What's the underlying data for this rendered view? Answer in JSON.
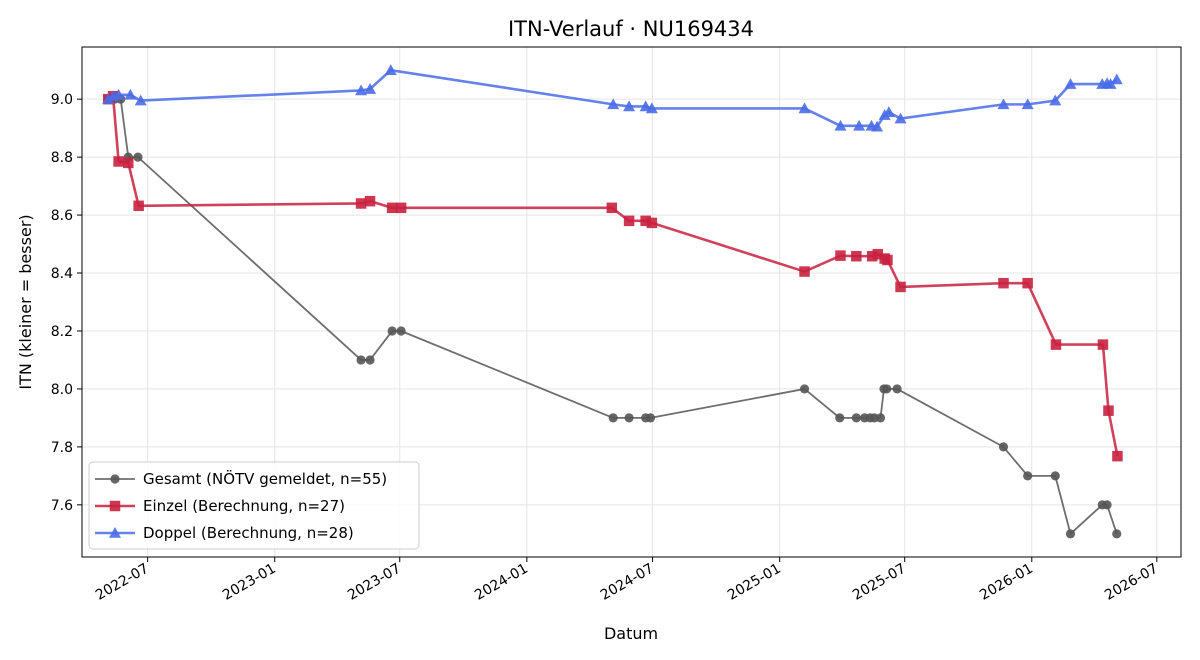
{
  "chart_data": {
    "type": "line",
    "title": "ITN-Verlauf · NU169434",
    "xlabel": "Datum",
    "ylabel": "ITN  (kleiner = besser)",
    "xlim": [
      "2022-03-28",
      "2026-08-05"
    ],
    "ylim": [
      7.42,
      9.18
    ],
    "x_ticks": [
      "2022-07",
      "2023-01",
      "2023-07",
      "2024-01",
      "2024-07",
      "2025-01",
      "2025-07",
      "2026-01",
      "2026-07"
    ],
    "y_ticks": [
      7.6,
      7.8,
      8.0,
      8.2,
      8.4,
      8.6,
      8.8,
      9.0
    ],
    "grid": true,
    "legend_position": "lower-left",
    "series": [
      {
        "name": "Gesamt (NÖTV gemeldet, n=55)",
        "color": "#555555",
        "marker": "circle",
        "points": [
          {
            "x": "2022-05-05",
            "y": 9.0
          },
          {
            "x": "2022-05-08",
            "y": 9.0
          },
          {
            "x": "2022-05-14",
            "y": 9.0
          },
          {
            "x": "2022-05-23",
            "y": 9.0
          },
          {
            "x": "2022-06-03",
            "y": 8.8
          },
          {
            "x": "2022-06-17",
            "y": 8.8
          },
          {
            "x": "2023-05-06",
            "y": 8.1
          },
          {
            "x": "2023-05-19",
            "y": 8.1
          },
          {
            "x": "2023-06-20",
            "y": 8.2
          },
          {
            "x": "2023-07-03",
            "y": 8.2
          },
          {
            "x": "2024-05-05",
            "y": 7.9
          },
          {
            "x": "2024-05-28",
            "y": 7.9
          },
          {
            "x": "2024-06-21",
            "y": 7.9
          },
          {
            "x": "2024-06-28",
            "y": 7.9
          },
          {
            "x": "2025-02-06",
            "y": 8.0
          },
          {
            "x": "2025-03-29",
            "y": 7.9
          },
          {
            "x": "2025-04-22",
            "y": 7.9
          },
          {
            "x": "2025-05-04",
            "y": 7.9
          },
          {
            "x": "2025-05-12",
            "y": 7.9
          },
          {
            "x": "2025-05-18",
            "y": 7.9
          },
          {
            "x": "2025-05-27",
            "y": 7.9
          },
          {
            "x": "2025-06-01",
            "y": 8.0
          },
          {
            "x": "2025-06-05",
            "y": 8.0
          },
          {
            "x": "2025-06-20",
            "y": 8.0
          },
          {
            "x": "2025-11-21",
            "y": 7.8
          },
          {
            "x": "2025-12-26",
            "y": 7.7
          },
          {
            "x": "2026-02-04",
            "y": 7.7
          },
          {
            "x": "2026-02-26",
            "y": 7.5
          },
          {
            "x": "2026-04-13",
            "y": 7.6
          },
          {
            "x": "2026-04-20",
            "y": 7.6
          },
          {
            "x": "2026-05-04",
            "y": 7.5
          }
        ]
      },
      {
        "name": "Einzel (Berechnung, n=27)",
        "color": "#c8213f",
        "marker": "square",
        "points": [
          {
            "x": "2022-05-05",
            "y": 9.0
          },
          {
            "x": "2022-05-12",
            "y": 9.01
          },
          {
            "x": "2022-05-20",
            "y": 8.785
          },
          {
            "x": "2022-06-03",
            "y": 8.78
          },
          {
            "x": "2022-06-18",
            "y": 8.632
          },
          {
            "x": "2023-05-06",
            "y": 8.64
          },
          {
            "x": "2023-05-19",
            "y": 8.648
          },
          {
            "x": "2023-06-20",
            "y": 8.625
          },
          {
            "x": "2023-07-03",
            "y": 8.625
          },
          {
            "x": "2024-05-03",
            "y": 8.625
          },
          {
            "x": "2024-05-28",
            "y": 8.58
          },
          {
            "x": "2024-06-21",
            "y": 8.58
          },
          {
            "x": "2024-06-30",
            "y": 8.573
          },
          {
            "x": "2025-02-06",
            "y": 8.405
          },
          {
            "x": "2025-03-30",
            "y": 8.46
          },
          {
            "x": "2025-04-22",
            "y": 8.458
          },
          {
            "x": "2025-05-15",
            "y": 8.458
          },
          {
            "x": "2025-05-23",
            "y": 8.465
          },
          {
            "x": "2025-06-02",
            "y": 8.45
          },
          {
            "x": "2025-06-06",
            "y": 8.445
          },
          {
            "x": "2025-06-25",
            "y": 8.352
          },
          {
            "x": "2025-11-21",
            "y": 8.365
          },
          {
            "x": "2025-12-26",
            "y": 8.365
          },
          {
            "x": "2026-02-05",
            "y": 8.153
          },
          {
            "x": "2026-04-14",
            "y": 8.153
          },
          {
            "x": "2026-04-22",
            "y": 7.925
          },
          {
            "x": "2026-05-05",
            "y": 7.768
          }
        ]
      },
      {
        "name": "Doppel (Berechnung, n=28)",
        "color": "#4a6ce8",
        "marker": "triangle",
        "points": [
          {
            "x": "2022-05-05",
            "y": 9.0
          },
          {
            "x": "2022-05-12",
            "y": 9.01
          },
          {
            "x": "2022-05-20",
            "y": 9.015
          },
          {
            "x": "2022-06-06",
            "y": 9.015
          },
          {
            "x": "2022-06-21",
            "y": 8.995
          },
          {
            "x": "2023-05-06",
            "y": 9.03
          },
          {
            "x": "2023-05-19",
            "y": 9.035
          },
          {
            "x": "2023-06-18",
            "y": 9.1
          },
          {
            "x": "2024-05-05",
            "y": 8.982
          },
          {
            "x": "2024-05-28",
            "y": 8.975
          },
          {
            "x": "2024-06-21",
            "y": 8.975
          },
          {
            "x": "2024-06-30",
            "y": 8.968
          },
          {
            "x": "2025-02-06",
            "y": 8.968
          },
          {
            "x": "2025-03-30",
            "y": 8.908
          },
          {
            "x": "2025-04-26",
            "y": 8.908
          },
          {
            "x": "2025-05-14",
            "y": 8.908
          },
          {
            "x": "2025-05-22",
            "y": 8.905
          },
          {
            "x": "2025-06-02",
            "y": 8.945
          },
          {
            "x": "2025-06-08",
            "y": 8.955
          },
          {
            "x": "2025-06-25",
            "y": 8.933
          },
          {
            "x": "2025-11-21",
            "y": 8.982
          },
          {
            "x": "2025-12-26",
            "y": 8.982
          },
          {
            "x": "2026-02-04",
            "y": 8.995
          },
          {
            "x": "2026-02-26",
            "y": 9.052
          },
          {
            "x": "2026-04-13",
            "y": 9.052
          },
          {
            "x": "2026-04-20",
            "y": 9.055
          },
          {
            "x": "2026-04-25",
            "y": 9.052
          },
          {
            "x": "2026-05-04",
            "y": 9.068
          }
        ]
      }
    ]
  }
}
